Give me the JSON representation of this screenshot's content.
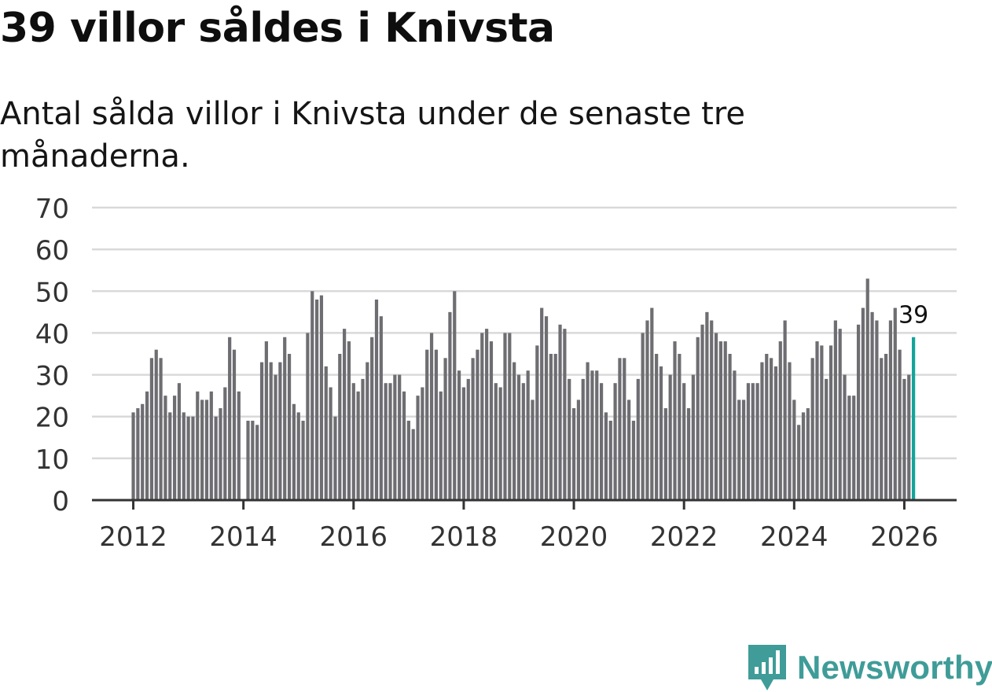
{
  "title": "39 villor såldes i Knivsta",
  "subtitle": "Antal sålda villor i Knivsta under de senaste tre månaderna.",
  "brand": {
    "name": "Newsworthy",
    "color": "#3f9c98",
    "icon": "newsworthy-logo-icon"
  },
  "colors": {
    "bar": "#6d6d72",
    "highlight": "#14a39a",
    "grid": "#d9d9d9",
    "axis": "#333333"
  },
  "chart_data": {
    "type": "bar",
    "title": "39 villor såldes i Knivsta",
    "xlabel": "",
    "ylabel": "",
    "ylim": [
      0,
      70
    ],
    "yticks": [
      "0",
      "10",
      "20",
      "30",
      "40",
      "50",
      "60",
      "70"
    ],
    "xticks": [
      "2012",
      "2014",
      "2016",
      "2018",
      "2020",
      "2022",
      "2024",
      "2026"
    ],
    "xrange_years": [
      2011.25,
      2026.95
    ],
    "start": "2012-01",
    "highlight_label": "39",
    "grid": true,
    "values": [
      21,
      22,
      23,
      26,
      34,
      36,
      34,
      25,
      21,
      25,
      28,
      21,
      20,
      20,
      26,
      24,
      24,
      26,
      20,
      22,
      27,
      39,
      36,
      26,
      0,
      19,
      19,
      18,
      33,
      38,
      33,
      30,
      33,
      39,
      35,
      23,
      21,
      19,
      40,
      50,
      48,
      49,
      32,
      27,
      20,
      35,
      41,
      38,
      28,
      26,
      29,
      33,
      39,
      48,
      44,
      28,
      28,
      30,
      30,
      26,
      19,
      17,
      25,
      27,
      36,
      40,
      36,
      26,
      34,
      45,
      50,
      31,
      27,
      29,
      34,
      36,
      40,
      41,
      38,
      28,
      27,
      40,
      40,
      33,
      30,
      28,
      31,
      24,
      37,
      46,
      44,
      35,
      35,
      42,
      41,
      29,
      22,
      24,
      29,
      33,
      31,
      31,
      28,
      21,
      19,
      28,
      34,
      34,
      24,
      19,
      29,
      40,
      43,
      46,
      35,
      32,
      22,
      30,
      38,
      35,
      28,
      22,
      30,
      39,
      42,
      45,
      43,
      40,
      38,
      38,
      35,
      31,
      24,
      24,
      28,
      28,
      28,
      33,
      35,
      34,
      32,
      38,
      43,
      33,
      24,
      18,
      21,
      22,
      34,
      38,
      37,
      29,
      37,
      43,
      41,
      30,
      25,
      25,
      42,
      46,
      53,
      45,
      43,
      34,
      35,
      43,
      46,
      36,
      29,
      30,
      39
    ]
  }
}
